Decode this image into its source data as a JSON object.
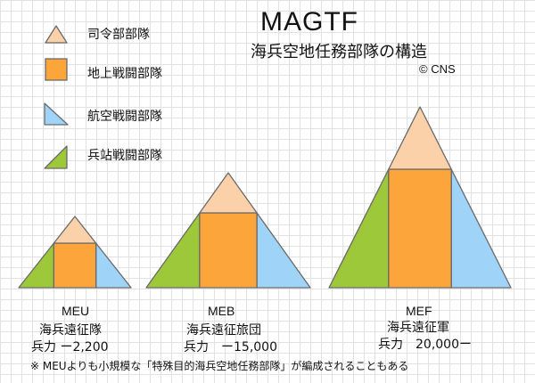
{
  "title": "MAGTF",
  "subtitle": "海兵空地任務部隊の構造",
  "copyright": "© CNS",
  "legend": [
    {
      "label": "司令部部隊",
      "color": "#fbd1aa"
    },
    {
      "label": "地上戦闘部隊",
      "color": "#fba53a"
    },
    {
      "label": "航空戦闘部隊",
      "color": "#9fd3f7"
    },
    {
      "label": "兵站戦闘部隊",
      "color": "#9cc83a"
    }
  ],
  "units": [
    {
      "name": "MEU",
      "name_jp": "海兵遠征隊",
      "strength": "兵力 ー2,200"
    },
    {
      "name": "MEB",
      "name_jp": "海兵遠征旅団",
      "strength": "兵力　ー15,000"
    },
    {
      "name": "MEF",
      "name_jp": "海兵遠征軍",
      "strength": "兵力　20,000ー"
    }
  ],
  "footnote": "※ MEUよりも小規模な「特殊目的海兵空地任務部隊」が編成されることもある"
}
